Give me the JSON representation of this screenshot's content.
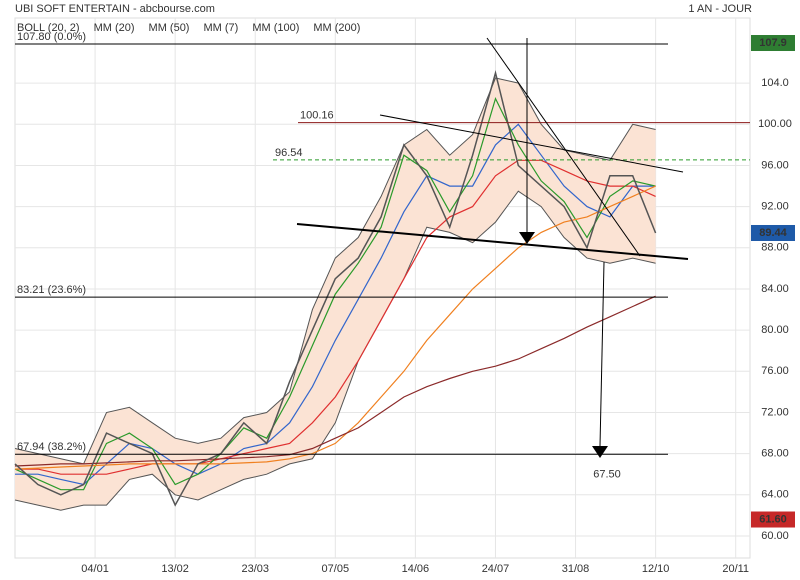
{
  "chart_data": {
    "type": "line",
    "title": "UBI SOFT ENTERTAIN - abcbourse.com",
    "period": "1 AN - JOUR",
    "x": [
      0,
      8,
      16,
      24,
      32,
      40,
      48,
      56,
      64,
      72,
      80,
      88,
      96,
      104,
      112,
      120,
      128,
      136,
      144,
      152,
      160,
      168,
      176,
      184,
      192,
      200,
      208,
      216,
      224
    ],
    "xlim": [
      0,
      257
    ],
    "xticks": [
      {
        "value": 28,
        "label": "04/01"
      },
      {
        "value": 56,
        "label": "13/02"
      },
      {
        "value": 84,
        "label": "23/03"
      },
      {
        "value": 112,
        "label": "07/05"
      },
      {
        "value": 140,
        "label": "14/06"
      },
      {
        "value": 168,
        "label": "24/07"
      },
      {
        "value": 196,
        "label": "31/08"
      },
      {
        "value": 224,
        "label": "12/10"
      },
      {
        "value": 252,
        "label": "20/11"
      }
    ],
    "ylim": [
      57.86,
      110.33
    ],
    "yticks": [
      {
        "value": 60,
        "label": "60.00"
      },
      {
        "value": 64,
        "label": "64.00"
      },
      {
        "value": 68,
        "label": "68.00"
      },
      {
        "value": 72,
        "label": "72.00"
      },
      {
        "value": 76,
        "label": "76.00"
      },
      {
        "value": 80,
        "label": "80.00"
      },
      {
        "value": 84,
        "label": "84.00"
      },
      {
        "value": 88,
        "label": "88.00"
      },
      {
        "value": 92,
        "label": "92.00"
      },
      {
        "value": 96,
        "label": "96.00"
      },
      {
        "value": 100,
        "label": "100.00"
      },
      {
        "value": 104,
        "label": "104.0"
      }
    ],
    "grid": true,
    "close": [
      67,
      65,
      64,
      65,
      70,
      69,
      68,
      63,
      67,
      68,
      71,
      69,
      75,
      80,
      85,
      87,
      91,
      98,
      95,
      90,
      97,
      105,
      96,
      94,
      92,
      88,
      95,
      95,
      89.44
    ],
    "close_color": "#555555",
    "bollinger": {
      "name": "BOLL (20, 2)",
      "color": "#555555",
      "fill": "#fbe3d4",
      "upper": [
        68.5,
        68,
        67.5,
        67,
        72,
        72.5,
        71,
        69.5,
        69,
        69.5,
        71.5,
        72,
        74,
        82,
        87,
        89,
        93,
        98,
        99.5,
        97,
        99,
        104.5,
        104,
        100,
        97.5,
        97,
        96.5,
        100,
        99.5
      ],
      "lower": [
        63.5,
        63,
        62.5,
        63,
        63,
        65.5,
        66,
        64,
        63.5,
        64.5,
        65.5,
        66,
        67,
        67.5,
        71,
        77,
        81,
        85,
        90,
        89.5,
        88.5,
        90.5,
        93.5,
        92,
        89,
        87,
        86.5,
        87,
        86.5
      ]
    },
    "series": [
      {
        "name": "MM (20)",
        "color": "#3366cc",
        "values": [
          66,
          66,
          65.5,
          65,
          67,
          69,
          68.5,
          67,
          66,
          67,
          68.5,
          69,
          71,
          74.5,
          79,
          83,
          87,
          91.5,
          95,
          94,
          94,
          98,
          100,
          97,
          94,
          92,
          91,
          94,
          94
        ]
      },
      {
        "name": "MM (50)",
        "color": "#e03030",
        "values": [
          66.5,
          66.5,
          66,
          66,
          66,
          66.5,
          67,
          67,
          67,
          67.5,
          68,
          68.5,
          69,
          71,
          73.5,
          77,
          81,
          85,
          89,
          91,
          92,
          95,
          96.5,
          96.5,
          95.5,
          94.5,
          94,
          94,
          93
        ]
      },
      {
        "name": "MM (7)",
        "color": "#2a9a2a",
        "values": [
          66.5,
          65.5,
          64.5,
          64.5,
          69,
          70,
          68.5,
          65,
          66,
          68,
          70.5,
          69.5,
          73.5,
          78.5,
          83.5,
          86.5,
          90,
          97,
          95.5,
          91.5,
          95,
          102.5,
          98,
          94.5,
          92.5,
          89,
          93,
          94.5,
          94
        ]
      },
      {
        "name": "MM (100)",
        "color": "#f08020",
        "values": [
          66.5,
          66.6,
          66.7,
          66.8,
          66.9,
          67,
          67,
          67,
          67,
          67,
          67.1,
          67.2,
          67.5,
          68,
          69,
          71,
          73.5,
          76,
          79,
          81.5,
          84,
          86,
          88,
          89.5,
          90.5,
          91,
          92,
          93,
          94
        ]
      },
      {
        "name": "MM (200)",
        "color": "#8b2a2a",
        "values": [
          66.8,
          66.9,
          67,
          67,
          67.1,
          67.2,
          67.3,
          67.3,
          67.4,
          67.5,
          67.6,
          67.7,
          67.9,
          68.5,
          69.5,
          70.5,
          72,
          73.5,
          74.5,
          75.3,
          76,
          76.5,
          77.2,
          78.2,
          79.2,
          80.3,
          81.3,
          82.3,
          83.3
        ]
      }
    ],
    "levels": [
      {
        "value": 107.8,
        "label": "107.80  (0.0%)",
        "color": "#000000"
      },
      {
        "value": 100.16,
        "label": "100.16",
        "color": "#8b1a1a"
      },
      {
        "value": 96.54,
        "label": "96.54",
        "color": "#2a9a2a"
      },
      {
        "value": 83.21,
        "label": "83.21  (23.6%)",
        "color": "#000000"
      },
      {
        "value": 67.94,
        "label": "67.94  (38.2%)",
        "color": "#000000"
      }
    ],
    "annotations": [
      {
        "value": 67.5,
        "label": "67.50"
      }
    ],
    "price_tags": [
      {
        "value": 107.9,
        "label": "107.9",
        "color": "#2e7d32"
      },
      {
        "value": 89.44,
        "label": "89.44",
        "color": "#1e5aa8"
      },
      {
        "value": 61.6,
        "label": "61.60",
        "color": "#c62828"
      }
    ]
  }
}
